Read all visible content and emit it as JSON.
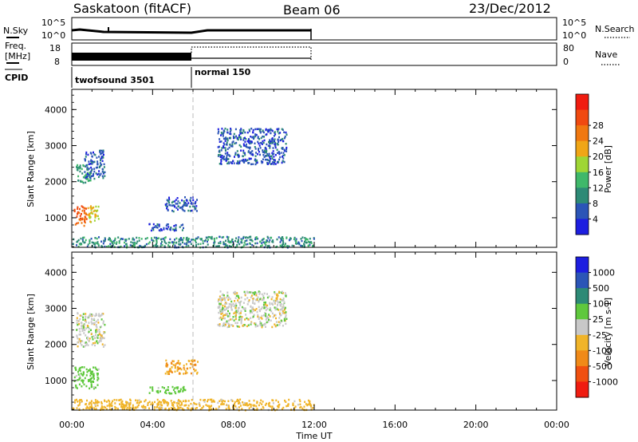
{
  "header": {
    "station": "Saskatoon (fitACF)",
    "beam": "Beam 06",
    "date": "23/Dec/2012"
  },
  "strip_panels": {
    "nsky": {
      "label": "N.Sky",
      "ticks": [
        "10^5",
        "10^0"
      ],
      "right_ticks": [
        "10^5",
        "10^0"
      ],
      "right_label": "N.Search"
    },
    "freq": {
      "label_top": "Freq.",
      "label_bottom": "[MHz]",
      "ticks": [
        "18",
        "8"
      ],
      "right_ticks": [
        "80",
        "0"
      ],
      "right_label": "Nave"
    },
    "cpid": {
      "label": "CPID",
      "modes": [
        {
          "name": "twofsound 3501",
          "start_hour": 0,
          "end_hour": 6
        },
        {
          "name": "normal 150",
          "start_hour": 6,
          "end_hour": 12
        }
      ]
    }
  },
  "time_axis": {
    "label": "Time UT",
    "ticks": [
      "00:00",
      "04:00",
      "08:00",
      "12:00",
      "16:00",
      "20:00",
      "00:00"
    ],
    "range_hours": [
      0,
      24
    ],
    "data_end_hour": 12,
    "mode_change_hour": 6
  },
  "range_axis": {
    "label": "Slant Range [km]",
    "ticks": [
      1000,
      2000,
      3000,
      4000
    ],
    "range_km": [
      180,
      4560
    ]
  },
  "power_scale": {
    "label": "Power [dB]",
    "ticks": [
      "4",
      "8",
      "12",
      "16",
      "20",
      "24",
      "28"
    ],
    "colors": [
      "#1d1ee0",
      "#2b55b7",
      "#2d8a76",
      "#3fb86a",
      "#9fd635",
      "#f0a616",
      "#f07810",
      "#f04a10",
      "#f01c10"
    ]
  },
  "velocity_scale": {
    "label": "Velocity [m s-1]",
    "ticks": [
      "1000",
      "500",
      "100",
      "25",
      "-25",
      "-100",
      "-500",
      "-1000"
    ],
    "colors": [
      "#1d1ee0",
      "#2b55b7",
      "#2d8a76",
      "#5fc83d",
      "#c8c8c8",
      "#f0b429",
      "#f08a18",
      "#f05010",
      "#f01c10"
    ]
  },
  "chart_data": [
    {
      "type": "heatmap",
      "panel": "power",
      "xlabel": "Time UT",
      "ylabel": "Slant Range [km]",
      "colorbar": "Power [dB]",
      "xlim": [
        0,
        24
      ],
      "ylim": [
        180,
        4560
      ],
      "regions": [
        {
          "t": [
            0.1,
            0.7
          ],
          "r": [
            800,
            1400
          ],
          "value": 28
        },
        {
          "t": [
            0.7,
            1.3
          ],
          "r": [
            900,
            1350
          ],
          "value": 20
        },
        {
          "t": [
            0.2,
            0.9
          ],
          "r": [
            1950,
            2500
          ],
          "value": 12
        },
        {
          "t": [
            0.6,
            1.6
          ],
          "r": [
            2100,
            2900
          ],
          "value": 6
        },
        {
          "t": [
            3.8,
            5.6
          ],
          "r": [
            650,
            850
          ],
          "value": 6
        },
        {
          "t": [
            4.6,
            6.2
          ],
          "r": [
            1200,
            1600
          ],
          "value": 6
        },
        {
          "t": [
            7.2,
            10.6
          ],
          "r": [
            2500,
            3500
          ],
          "value": 6
        },
        {
          "t": [
            0.0,
            12.0
          ],
          "r": [
            200,
            500
          ],
          "value": 10
        }
      ]
    },
    {
      "type": "heatmap",
      "panel": "velocity",
      "xlabel": "Time UT",
      "ylabel": "Slant Range [km]",
      "colorbar": "Velocity [m s-1]",
      "xlim": [
        0,
        24
      ],
      "ylim": [
        180,
        4560
      ],
      "regions": [
        {
          "t": [
            0.1,
            1.3
          ],
          "r": [
            800,
            1400
          ],
          "value": 60
        },
        {
          "t": [
            0.2,
            1.6
          ],
          "r": [
            1950,
            2900
          ],
          "value": 0
        },
        {
          "t": [
            3.8,
            5.6
          ],
          "r": [
            650,
            850
          ],
          "value": 60
        },
        {
          "t": [
            4.6,
            6.2
          ],
          "r": [
            1200,
            1600
          ],
          "value": -100
        },
        {
          "t": [
            7.2,
            10.6
          ],
          "r": [
            2500,
            3500
          ],
          "value": 0
        },
        {
          "t": [
            0.0,
            12.0
          ],
          "r": [
            200,
            500
          ],
          "value": -60
        }
      ]
    }
  ]
}
